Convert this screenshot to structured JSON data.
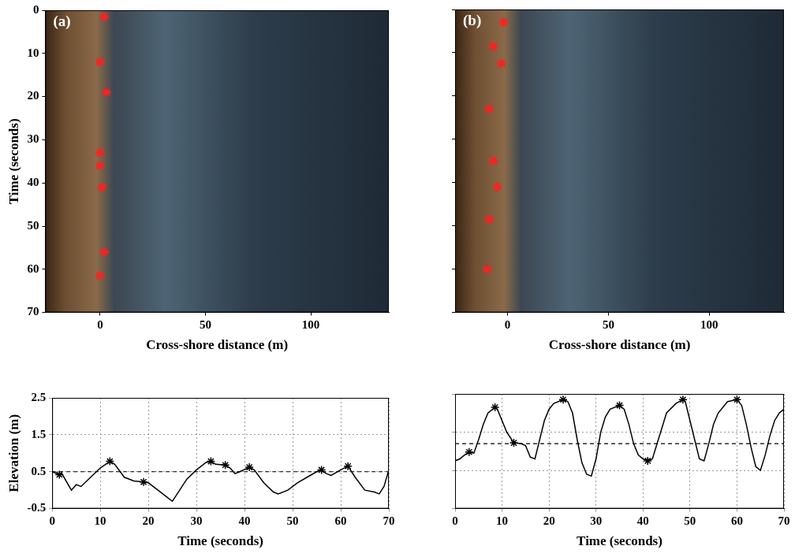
{
  "chart_data": [
    {
      "type": "scatter",
      "label": "(a)",
      "xlabel": "Cross-shore distance (m)",
      "ylabel": "Time (seconds)",
      "xlim": [
        -26,
        137
      ],
      "xticks": [
        0,
        50,
        100
      ],
      "ylim": [
        0,
        70
      ],
      "yticks": [
        0,
        10,
        20,
        30,
        40,
        50,
        60,
        70
      ],
      "grid": false,
      "color": "#ff2020",
      "marker": "star",
      "x": [
        2,
        0,
        3,
        0,
        0,
        1,
        2,
        0
      ],
      "values": [
        1.5,
        12,
        19,
        33,
        36,
        41,
        56,
        61.5
      ]
    },
    {
      "type": "scatter",
      "label": "(b)",
      "xlabel": "Cross-shore distance (m)",
      "xlim": [
        -26,
        137
      ],
      "xticks": [
        0,
        50,
        100
      ],
      "ylim": [
        0,
        70
      ],
      "yticks": [
        0,
        10,
        20,
        30,
        40,
        50,
        60,
        70
      ],
      "grid": false,
      "tick_labels": "x",
      "color": "#ff2020",
      "marker": "star",
      "x": [
        -2,
        -7,
        -3,
        -9,
        -7,
        -5,
        -9,
        -10
      ],
      "values": [
        3,
        8.5,
        12.5,
        23,
        35,
        41,
        48.5,
        60
      ]
    },
    {
      "type": "line",
      "xlabel": "Time (seconds)",
      "ylabel": "Elevation (m)",
      "xlim": [
        0,
        70
      ],
      "xticks": [
        0,
        10,
        20,
        30,
        40,
        50,
        60,
        70
      ],
      "ylim": [
        -0.5,
        2.5
      ],
      "yticks": [
        -0.5,
        0.5,
        1.5,
        2.5
      ],
      "grid": true,
      "mean_level": 0.5,
      "series": [
        {
          "color": "#000000",
          "line_style": "solid",
          "x": [
            0,
            1.5,
            2,
            4,
            5,
            6,
            8,
            10,
            12,
            13,
            15,
            17,
            19,
            20,
            22,
            24,
            25,
            26,
            28,
            30,
            32,
            33,
            34,
            36,
            37,
            38,
            39,
            41,
            42,
            44,
            46,
            47,
            49,
            51,
            53,
            55,
            56,
            57,
            58,
            60,
            61.5,
            63,
            65,
            67,
            68,
            69,
            70
          ],
          "values": [
            0.5,
            0.42,
            0.45,
            0.0,
            0.15,
            0.1,
            0.35,
            0.6,
            0.78,
            0.7,
            0.35,
            0.25,
            0.22,
            0.2,
            0.0,
            -0.2,
            -0.3,
            -0.1,
            0.3,
            0.55,
            0.75,
            0.78,
            0.7,
            0.68,
            0.6,
            0.45,
            0.5,
            0.62,
            0.55,
            0.2,
            -0.05,
            -0.1,
            0.0,
            0.2,
            0.35,
            0.5,
            0.55,
            0.45,
            0.4,
            0.55,
            0.65,
            0.35,
            0.0,
            -0.05,
            -0.1,
            0.1,
            0.55
          ]
        },
        {
          "color": "#000000",
          "marker": "star",
          "line_style": "none",
          "x": [
            1.5,
            12,
            19,
            33,
            36,
            41,
            56,
            61.5
          ],
          "values": [
            0.42,
            0.78,
            0.22,
            0.78,
            0.68,
            0.62,
            0.55,
            0.65
          ]
        }
      ]
    },
    {
      "type": "line",
      "xlabel": "Time (seconds)",
      "xlim": [
        0,
        70
      ],
      "xticks": [
        0,
        10,
        20,
        30,
        40,
        50,
        60,
        70
      ],
      "ylim": [
        -0.5,
        2.5
      ],
      "yticks": [
        -0.5,
        0.5,
        1.5,
        2.5
      ],
      "grid": true,
      "tick_labels": "x",
      "mean_level": 1.2,
      "series": [
        {
          "color": "#000000",
          "line_style": "solid",
          "x": [
            0,
            1,
            2,
            3,
            4,
            5,
            6,
            7,
            8.5,
            9,
            10,
            11,
            12.5,
            14,
            15,
            16,
            17,
            18,
            19,
            20,
            21,
            23,
            24,
            25,
            26,
            27,
            28,
            29,
            30,
            31,
            32,
            33,
            35,
            36,
            37,
            38,
            39,
            40,
            41,
            42,
            43,
            44,
            45,
            47,
            48.5,
            49,
            50,
            51,
            52,
            53,
            54,
            55,
            56,
            58,
            60,
            61,
            62,
            63,
            64,
            65,
            66,
            67,
            68,
            69,
            70
          ],
          "values": [
            0.75,
            0.8,
            0.9,
            0.98,
            0.95,
            1.3,
            1.7,
            2.0,
            2.15,
            2.1,
            1.8,
            1.5,
            1.22,
            1.2,
            1.15,
            0.85,
            0.8,
            1.3,
            1.8,
            2.1,
            2.25,
            2.35,
            2.3,
            2.0,
            1.3,
            0.7,
            0.4,
            0.35,
            0.8,
            1.5,
            1.9,
            2.1,
            2.2,
            2.1,
            1.7,
            1.2,
            0.9,
            0.8,
            0.75,
            0.8,
            1.2,
            1.6,
            2.0,
            2.25,
            2.35,
            2.3,
            1.8,
            1.3,
            0.8,
            0.75,
            1.2,
            1.7,
            2.0,
            2.3,
            2.35,
            2.2,
            1.7,
            1.1,
            0.6,
            0.5,
            0.9,
            1.4,
            1.8,
            2.0,
            2.1
          ]
        },
        {
          "color": "#000000",
          "marker": "star",
          "line_style": "none",
          "x": [
            3,
            8.5,
            12.5,
            23,
            35,
            41,
            48.5,
            60
          ],
          "values": [
            0.98,
            2.15,
            1.22,
            2.35,
            2.2,
            0.75,
            2.35,
            2.35
          ]
        }
      ]
    }
  ]
}
